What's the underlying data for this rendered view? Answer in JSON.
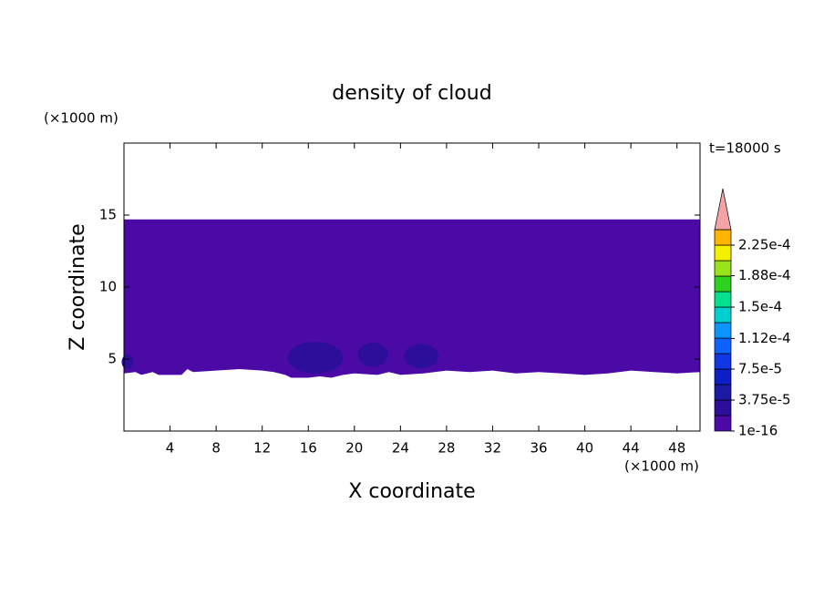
{
  "chart_data": {
    "type": "contour",
    "title": "density of cloud",
    "y_unit": "(×1000 m)",
    "x_unit": "(×1000 m)",
    "time_label": "t=18000 s",
    "xlabel": "X coordinate",
    "ylabel": "Z coordinate",
    "xlim": [
      0,
      50
    ],
    "ylim": [
      0,
      20
    ],
    "xticks": [
      4,
      8,
      12,
      16,
      20,
      24,
      28,
      32,
      36,
      40,
      44,
      48
    ],
    "yticks": [
      5,
      10,
      15
    ],
    "region": {
      "level": 0,
      "top": 14.7,
      "base": [
        [
          0,
          4.0
        ],
        [
          1,
          4.1
        ],
        [
          1.5,
          3.9
        ],
        [
          2.5,
          4.1
        ],
        [
          3,
          3.9
        ],
        [
          5,
          3.9
        ],
        [
          5.5,
          4.3
        ],
        [
          6,
          4.1
        ],
        [
          8,
          4.2
        ],
        [
          10,
          4.3
        ],
        [
          12,
          4.2
        ],
        [
          13,
          4.1
        ],
        [
          14,
          3.9
        ],
        [
          14.5,
          3.7
        ],
        [
          16,
          3.7
        ],
        [
          17,
          3.8
        ],
        [
          18,
          3.7
        ],
        [
          19,
          3.9
        ],
        [
          20,
          4.0
        ],
        [
          22,
          3.9
        ],
        [
          23,
          4.1
        ],
        [
          24,
          3.9
        ],
        [
          26,
          4.0
        ],
        [
          28,
          4.2
        ],
        [
          30,
          4.1
        ],
        [
          32,
          4.2
        ],
        [
          34,
          4.0
        ],
        [
          36,
          4.1
        ],
        [
          38,
          4.0
        ],
        [
          40,
          3.9
        ],
        [
          42,
          4.0
        ],
        [
          44,
          4.2
        ],
        [
          46,
          4.1
        ],
        [
          48,
          4.0
        ],
        [
          50,
          4.1
        ]
      ]
    },
    "cells": [
      {
        "level": 1,
        "x": 16.6,
        "z": 5.1,
        "rx": 2.4,
        "rz": 1.1
      },
      {
        "level": 1,
        "x": 21.6,
        "z": 5.3,
        "rx": 1.3,
        "rz": 0.85
      },
      {
        "level": 1,
        "x": 25.8,
        "z": 5.2,
        "rx": 1.5,
        "rz": 0.85
      },
      {
        "level": 1,
        "x": 0.3,
        "z": 4.8,
        "rx": 0.5,
        "rz": 0.5
      }
    ],
    "colorbar": {
      "levels": [
        0,
        1.875e-05,
        3.75e-05,
        5.625e-05,
        7.5e-05,
        9.375e-05,
        0.0001125,
        0.00013125,
        0.00015,
        0.00016875,
        0.0001875,
        0.00020625,
        0.000225,
        0.00024375
      ],
      "colors": [
        "#4b0aa5",
        "#2d0e9a",
        "#1c1aa4",
        "#0c1fc6",
        "#1036e6",
        "#0f62ff",
        "#0b96ff",
        "#00cfd0",
        "#05e08c",
        "#2ed21e",
        "#9ae21a",
        "#f5f000",
        "#ffb400",
        "#ff6a00",
        "#f00000"
      ],
      "extend_color": "#f4a4a4",
      "labels": [
        1e-16,
        {
          "value": 3.75e-05,
          "label": "3.75e-5"
        },
        {
          "value": 7.5e-05,
          "label": "7.5e-5"
        },
        {
          "value": 0.000112,
          "label": "1.12e-4"
        },
        {
          "value": 0.00015,
          "label": "1.5e-4"
        },
        {
          "value": 0.000188,
          "label": "1.88e-4"
        },
        {
          "value": 0.000225,
          "label": "2.25e-4"
        }
      ]
    }
  }
}
